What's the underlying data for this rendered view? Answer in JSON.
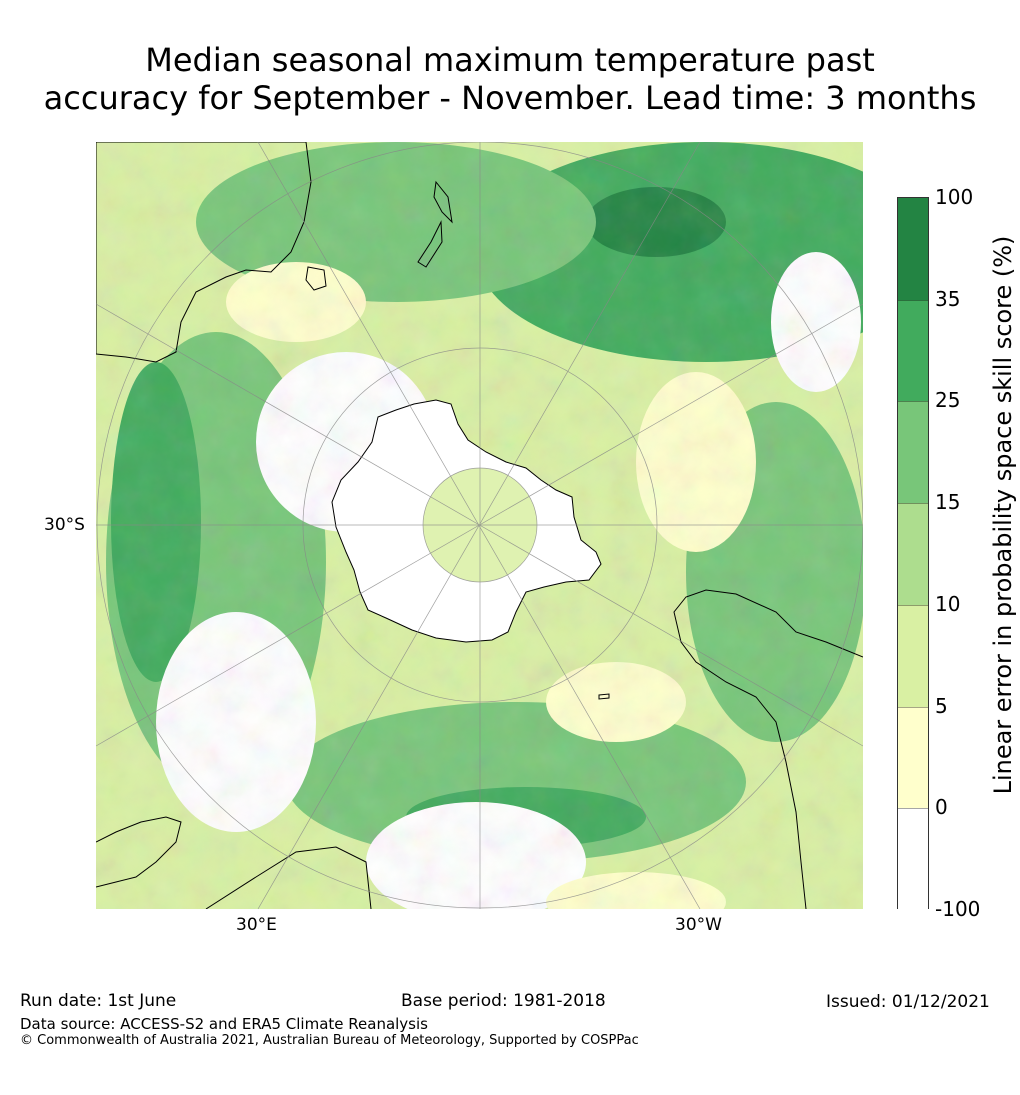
{
  "title": {
    "line1": "Median seasonal maximum temperature past",
    "line2": "accuracy for September - November. Lead time: 3 months"
  },
  "map": {
    "projection": "south-polar stereographic",
    "lat_label": "30°S",
    "lon_labels": {
      "east": "30°E",
      "west": "30°W"
    },
    "land_outline_color": "#000000"
  },
  "colorbar": {
    "label": "Linear error in probability space skill score (%)",
    "ticks": [
      "100",
      "35",
      "25",
      "15",
      "10",
      "5",
      "0",
      "-100"
    ],
    "bins": [
      {
        "range": "35 to 100",
        "color": "#238443"
      },
      {
        "range": "25 to 35",
        "color": "#41ab5d"
      },
      {
        "range": "15 to 25",
        "color": "#78c679"
      },
      {
        "range": "10 to 15",
        "color": "#addd8e"
      },
      {
        "range": "5 to 10",
        "color": "#d9f0a3"
      },
      {
        "range": "0 to 5",
        "color": "#ffffcc"
      },
      {
        "range": "-100 to 0",
        "color": "#ffffff"
      }
    ]
  },
  "footer": {
    "run_date": "Run date: 1st June",
    "base_period": "Base period: 1981-2018",
    "issued": "Issued: 01/12/2021",
    "data_source": "Data source: ACCESS-S2 and ERA5 Climate Reanalysis",
    "copyright": "© Commonwealth of Australia 2021, Australian Bureau of Meteorology, Supported by COSPPac"
  }
}
